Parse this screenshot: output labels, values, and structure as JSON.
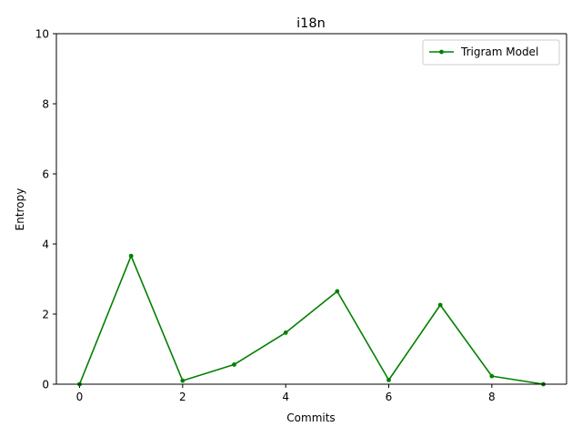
{
  "chart_data": {
    "type": "line",
    "title": "i18n",
    "xlabel": "Commits",
    "ylabel": "Entropy",
    "x": [
      0,
      1,
      2,
      3,
      4,
      5,
      6,
      7,
      8,
      9
    ],
    "series": [
      {
        "name": "Trigram Model",
        "color": "#008000",
        "marker": "point",
        "values": [
          0.0,
          3.66,
          0.1,
          0.56,
          1.47,
          2.65,
          0.12,
          2.26,
          0.23,
          0.0
        ]
      }
    ],
    "xlim": [
      -0.45,
      9.45
    ],
    "ylim": [
      0,
      10
    ],
    "xticks": [
      0,
      2,
      4,
      6,
      8
    ],
    "yticks": [
      0,
      2,
      4,
      6,
      8,
      10
    ],
    "grid": false,
    "legend_position": "upper right"
  }
}
